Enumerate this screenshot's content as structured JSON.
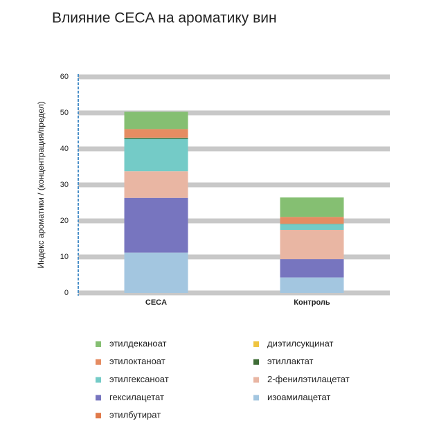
{
  "chart_data": {
    "type": "stacked_bar",
    "title": "Влияние CECA на ароматику вин",
    "y_label": "Индекс ароматики / (концентрация/предел)",
    "categories": [
      "CECA",
      "Контроль"
    ],
    "series": [
      {
        "name": "изоамилацетат",
        "color": "#a3c6e0",
        "values": [
          11.2,
          4.3
        ]
      },
      {
        "name": "гексилацетат",
        "color": "#7775bf",
        "values": [
          15.2,
          5.1
        ]
      },
      {
        "name": "2-фенилэтилацетат",
        "color": "#e9b6a3",
        "values": [
          7.4,
          8.1
        ]
      },
      {
        "name": "этилгексаноат",
        "color": "#74cbc7",
        "values": [
          9.0,
          1.6
        ]
      },
      {
        "name": "этиллактат",
        "color": "#3f6d37",
        "values": [
          0.3,
          0.1
        ]
      },
      {
        "name": "этилбутират",
        "color": "#e07a4a",
        "values": [
          0.1,
          0.1
        ]
      },
      {
        "name": "этилоктаноат",
        "color": "#e58c62",
        "values": [
          2.3,
          1.8
        ]
      },
      {
        "name": "этилдеканоат",
        "color": "#85bf72",
        "values": [
          4.8,
          5.4
        ]
      },
      {
        "name": "диэтилсукцинат",
        "color": "#efc440",
        "values": [
          0,
          0
        ]
      }
    ],
    "ylim": [
      0,
      60
    ],
    "yticks": [
      0,
      10,
      20,
      30,
      40,
      50,
      60
    ],
    "grid": true
  }
}
